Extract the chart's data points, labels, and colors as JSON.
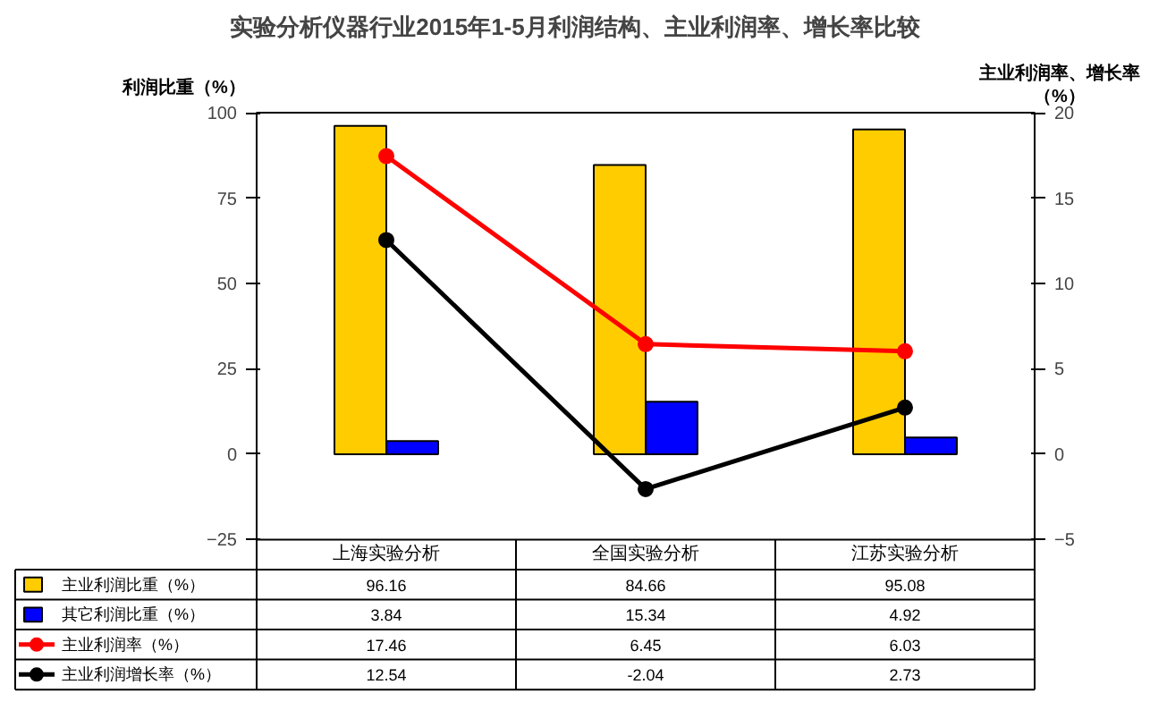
{
  "chart_data": {
    "type": "bar",
    "title": "实验分析仪器行业2015年1-5月利润结构、主业利润率、增长率比较",
    "ylabel": "利润比重（%）",
    "y2label": "主业利润率、增长率（%）",
    "categories": [
      "上海实验分析",
      "全国实验分析",
      "江苏实验分析"
    ],
    "series": [
      {
        "name": "主业利润比重（%）",
        "color": "#ffcc00",
        "values": [
          96.16,
          84.66,
          95.08
        ]
      },
      {
        "name": "其它利润比重（%）",
        "color": "#0000ff",
        "values": [
          3.84,
          15.34,
          4.92
        ]
      },
      {
        "name": "主业利润率（%）",
        "type": "line",
        "axis": "y2",
        "color": "#ff0000",
        "marker": "circle",
        "values": [
          17.46,
          6.45,
          6.03
        ]
      },
      {
        "name": "主业利润增长率（%）",
        "type": "line",
        "axis": "y2",
        "color": "#000000",
        "marker": "circle",
        "values": [
          12.54,
          -2.04,
          2.73
        ]
      }
    ],
    "ylim": [
      -25,
      100
    ],
    "yticks": [
      -25,
      0,
      25,
      50,
      75,
      100
    ],
    "y2lim": [
      -5,
      20
    ],
    "y2ticks": [
      -5,
      0,
      5,
      10,
      15,
      20
    ],
    "grid": false,
    "legend": "bottom",
    "data_labels": true
  }
}
